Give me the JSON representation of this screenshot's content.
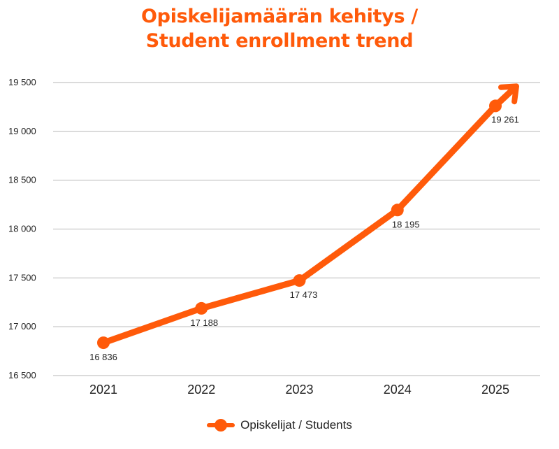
{
  "chart_data": {
    "type": "line",
    "title_line1": "Opiskelijamäärän kehitys /",
    "title_line2": "Student enrollment trend",
    "categories": [
      "2021",
      "2022",
      "2023",
      "2024",
      "2025"
    ],
    "series": [
      {
        "name": "Opiskelijat / Students",
        "values": [
          16836,
          17188,
          17473,
          18195,
          19261
        ],
        "value_labels": [
          "16 836",
          "17 188",
          "17 473",
          "18 195",
          "19 261"
        ],
        "color": "#ff5a0a"
      }
    ],
    "y_ticks": [
      16500,
      17000,
      17500,
      18000,
      18500,
      19000,
      19500
    ],
    "y_tick_labels": [
      "16 500",
      "17 000",
      "17 500",
      "18 000",
      "18 500",
      "19 000",
      "19 500"
    ],
    "ylim": [
      16500,
      19500
    ],
    "grid": true,
    "legend_position": "bottom",
    "end_marker": "arrow",
    "colors": {
      "accent": "#ff5a0a",
      "grid": "#b7b7b7",
      "text": "#222222"
    }
  }
}
